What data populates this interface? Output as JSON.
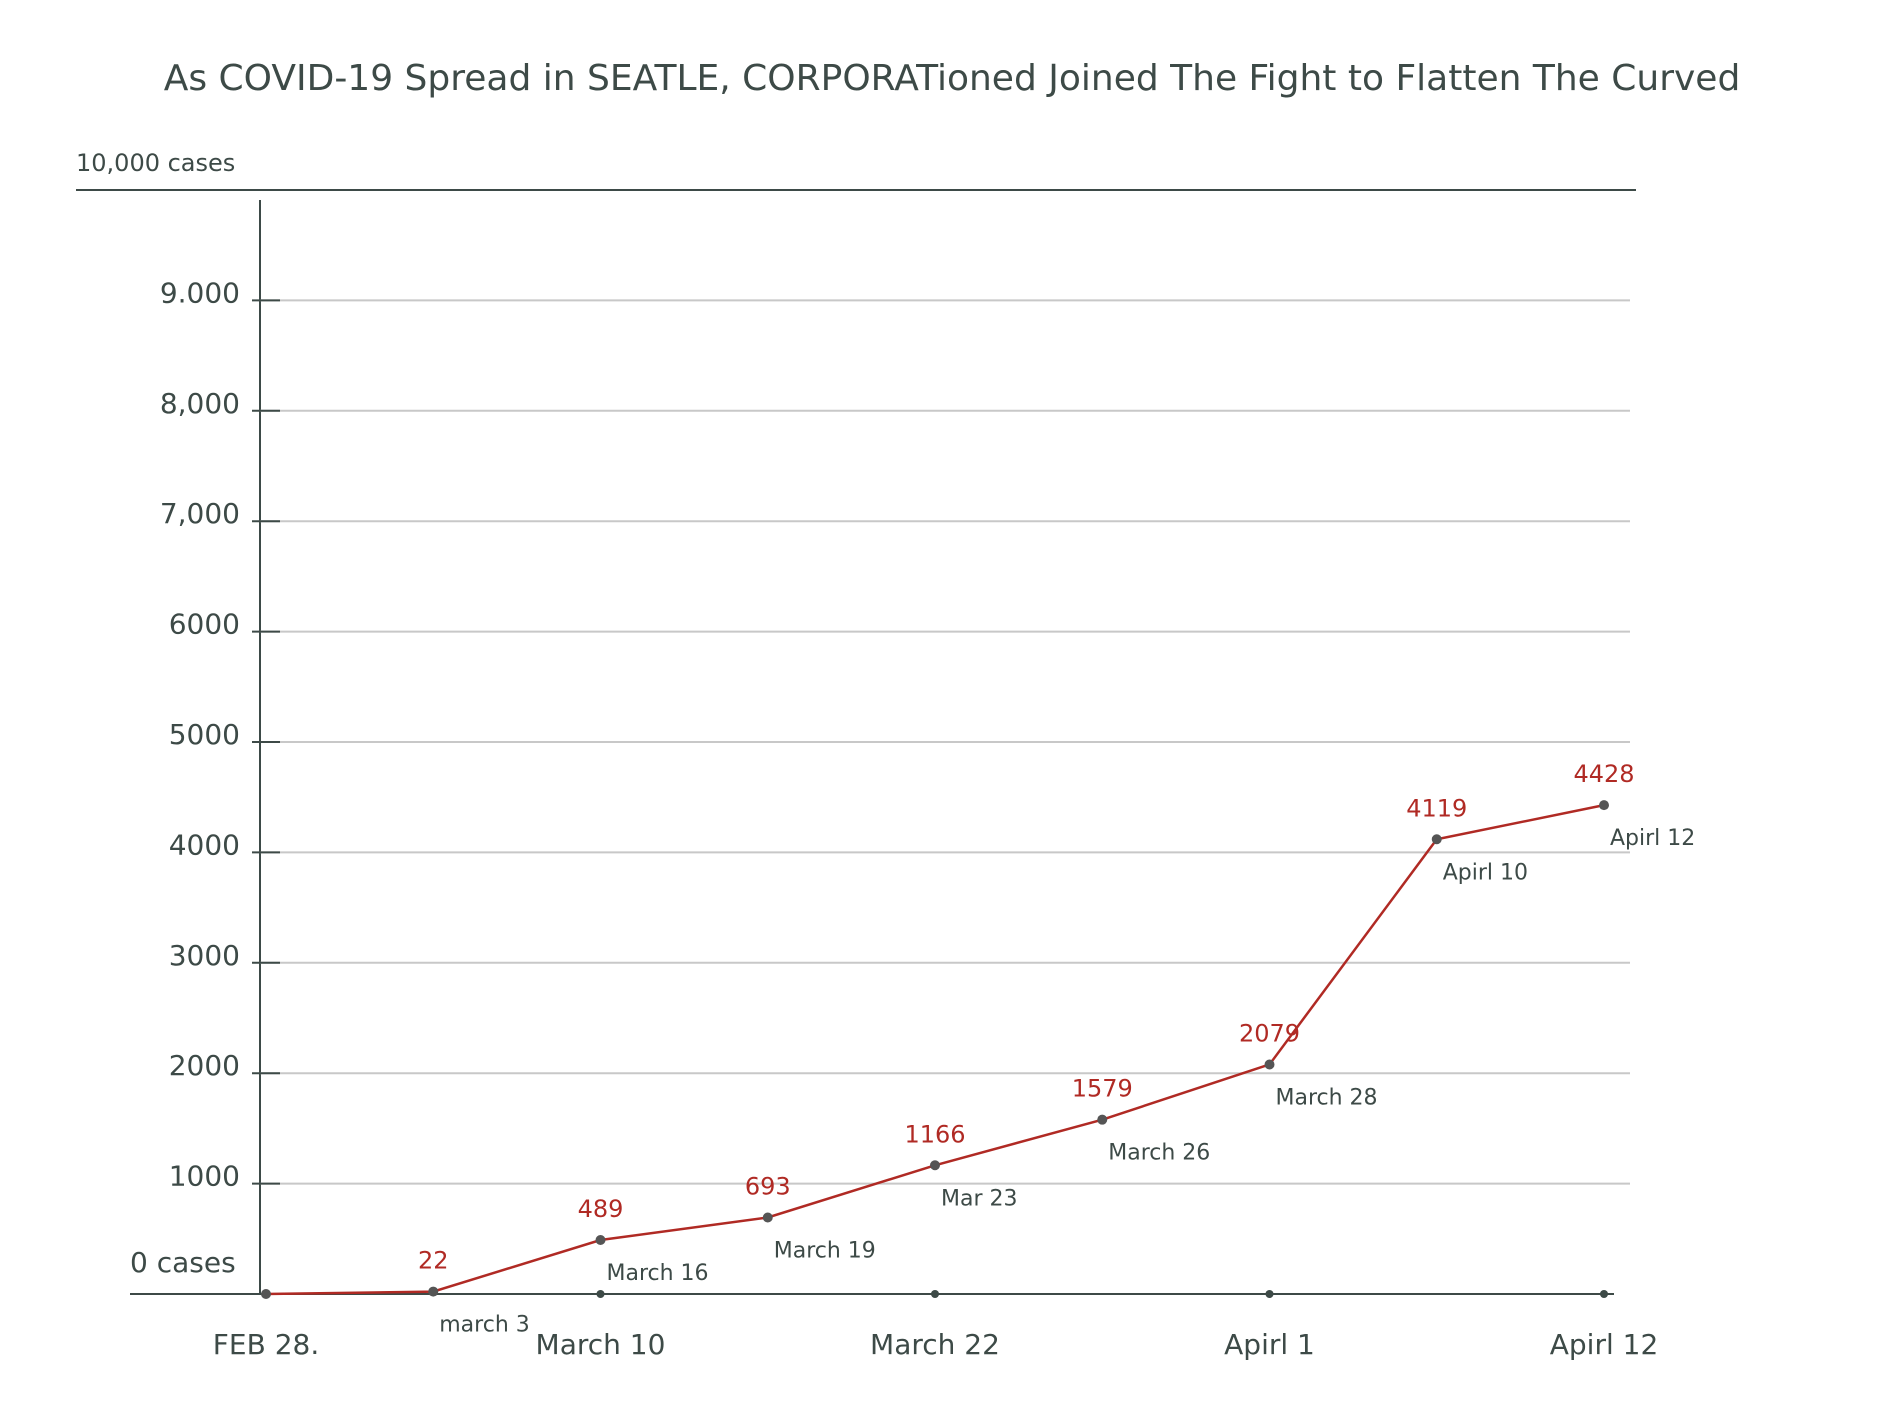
{
  "chart_data": {
    "type": "line",
    "title": "As COVID-19 Spread in SEATLE, CORPORATioned Joined The Fight to Flatten The Curved",
    "x": [
      "FEB 28.",
      "march 3",
      "March 16",
      "March 19",
      "Mar 23",
      "March 26",
      "March 28",
      "Apirl 10",
      "Apirl 12"
    ],
    "series": [
      {
        "color": "#b02a24",
        "values": [
          0,
          22,
          489,
          693,
          1166,
          1579,
          2079,
          4119,
          4428
        ]
      }
    ],
    "xtick_labels": [
      "March 10",
      "March 22",
      "Apirl 1",
      "Apirl 12"
    ],
    "ylim": [
      0,
      10000
    ],
    "yticks": [
      {
        "value": 0,
        "label": "0 cases"
      },
      1000,
      2000,
      3000,
      4000,
      5000,
      6000,
      {
        "value": 7000,
        "label": "7,000"
      },
      {
        "value": 8000,
        "label": "8,000"
      },
      {
        "value": 9000,
        "label": "9.000"
      },
      {
        "value": 10000,
        "label": "10,000 cases"
      }
    ],
    "grid": true
  }
}
